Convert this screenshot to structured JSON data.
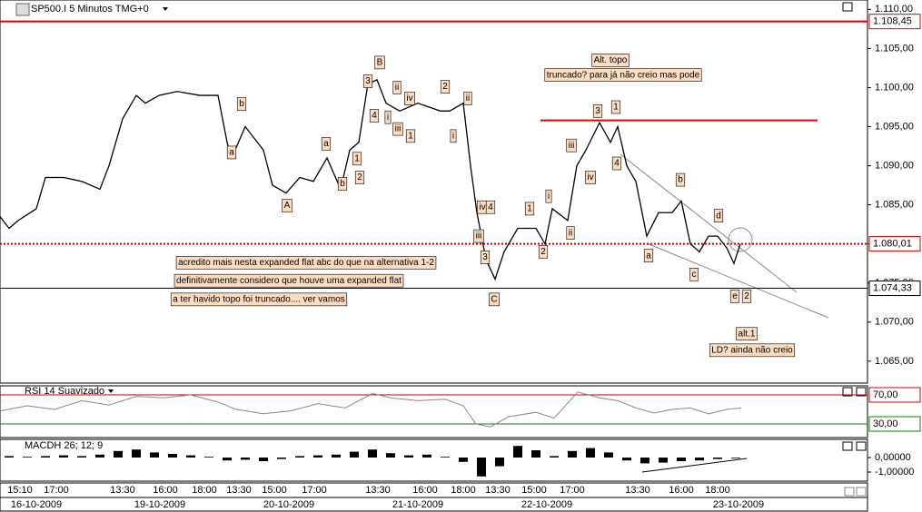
{
  "chart_data": [
    {
      "type": "line",
      "title": "SP500.I 5 Minutos TMG+0",
      "color": "#000000",
      "xlim": [
        0,
        477.5
      ],
      "ylim": [
        1062.2,
        1111.2
      ],
      "yticks": [
        {
          "value": 1065,
          "label": "1.065,00"
        },
        {
          "value": 1070,
          "label": "1.070,00"
        },
        {
          "value": 1075,
          "label": "1.075,00"
        },
        {
          "value": 1080,
          "label": "1.080,00"
        },
        {
          "value": 1085,
          "label": "1.085,00"
        },
        {
          "value": 1090,
          "label": "1.090,00"
        },
        {
          "value": 1095,
          "label": "1.095,00"
        },
        {
          "value": 1100,
          "label": "1.100,00"
        },
        {
          "value": 1105,
          "label": "1.105,00"
        },
        {
          "value": 1110,
          "label": "1.110,00"
        }
      ],
      "levels": [
        {
          "value": 1108.45,
          "label": "1.108,45",
          "color": "#dd0000",
          "style": "solid"
        },
        {
          "value": 1080.01,
          "label": "1.080,01",
          "color": "#cc0000",
          "style": "dotted"
        },
        {
          "value": 1074.33,
          "label": "1.074,33",
          "color": "#000000",
          "style": "solid"
        }
      ],
      "x": [
        0,
        5,
        10,
        20,
        25,
        35,
        45,
        55,
        60,
        67.5,
        75,
        80,
        87.5,
        97.5,
        110,
        120,
        125,
        127.5,
        135,
        145,
        150,
        157.5,
        165,
        172.5,
        180,
        187.5,
        192.5,
        197.5,
        202.5,
        207.5,
        212.5,
        220,
        230,
        242.5,
        247.5,
        255,
        259,
        262.5,
        267.5,
        272.5,
        277.5,
        285,
        295,
        300,
        304,
        312.5,
        317.5,
        322.5,
        330,
        336,
        340,
        345,
        350,
        356,
        362.5,
        370,
        375,
        380,
        385,
        390,
        395,
        400,
        404,
        407.5
      ],
      "values": [
        1083.5,
        1082,
        1083,
        1084.5,
        1088.5,
        1088.5,
        1088,
        1087,
        1090,
        1096,
        1099,
        1098,
        1099,
        1099.5,
        1099,
        1099,
        1093,
        1091,
        1095,
        1092,
        1087.5,
        1086.5,
        1088.5,
        1088,
        1091,
        1087,
        1092,
        1093,
        1100.5,
        1101,
        1098,
        1097,
        1098,
        1097,
        1097,
        1098,
        1090,
        1084,
        1078,
        1075.5,
        1079,
        1082,
        1082,
        1080,
        1084.5,
        1083,
        1090,
        1092,
        1095.5,
        1093,
        1095,
        1090,
        1088,
        1081,
        1084,
        1084,
        1085.5,
        1080,
        1079,
        1081,
        1081,
        1079.5,
        1077.5,
        1080
      ],
      "hline": {
        "value": 1095.8,
        "from": 297.5,
        "to": 450,
        "color": "#dd0000"
      },
      "annotations": [
        {
          "text": "B",
          "x": 209,
          "y": 1103.2
        },
        {
          "text": "3",
          "x": 202.5,
          "y": 1100.8
        },
        {
          "text": "ii",
          "x": 218.5,
          "y": 1100.0
        },
        {
          "text": "iv",
          "x": 225.5,
          "y": 1098.6
        },
        {
          "text": "4",
          "x": 206,
          "y": 1096.4
        },
        {
          "text": "i",
          "x": 213.5,
          "y": 1096.2
        },
        {
          "text": "iii",
          "x": 219,
          "y": 1094.7
        },
        {
          "text": "1",
          "x": 226,
          "y": 1093.8
        },
        {
          "text": "2",
          "x": 245,
          "y": 1100.1
        },
        {
          "text": "ii",
          "x": 257.5,
          "y": 1098.6
        },
        {
          "text": "i",
          "x": 249.5,
          "y": 1093.8
        },
        {
          "text": "b",
          "x": 133,
          "y": 1097.9
        },
        {
          "text": "a",
          "x": 179.5,
          "y": 1092.8
        },
        {
          "text": "a",
          "x": 127.5,
          "y": 1091.7
        },
        {
          "text": "1",
          "x": 196.5,
          "y": 1090.9
        },
        {
          "text": "2",
          "x": 198,
          "y": 1088.5
        },
        {
          "text": "b",
          "x": 188.5,
          "y": 1087.7
        },
        {
          "text": "A",
          "x": 158,
          "y": 1084.9
        },
        {
          "text": "iii",
          "x": 314.5,
          "y": 1092.6
        },
        {
          "text": "3",
          "x": 329,
          "y": 1097.0
        },
        {
          "text": "1",
          "x": 339,
          "y": 1097.5
        },
        {
          "text": "4",
          "x": 339.5,
          "y": 1090.3
        },
        {
          "text": "iv",
          "x": 325,
          "y": 1088.5
        },
        {
          "text": "i",
          "x": 302,
          "y": 1086.1
        },
        {
          "text": "1",
          "x": 291.5,
          "y": 1084.5
        },
        {
          "text": "iv",
          "x": 265.5,
          "y": 1084.7
        },
        {
          "text": "4",
          "x": 270,
          "y": 1084.7
        },
        {
          "text": "iii",
          "x": 263.5,
          "y": 1081.0
        },
        {
          "text": "ii",
          "x": 314,
          "y": 1081.4
        },
        {
          "text": "2",
          "x": 299,
          "y": 1079.0
        },
        {
          "text": "3",
          "x": 267,
          "y": 1078.3
        },
        {
          "text": "C",
          "x": 272,
          "y": 1072.9
        },
        {
          "text": "b",
          "x": 374.5,
          "y": 1088.2
        },
        {
          "text": "d",
          "x": 395.5,
          "y": 1083.6
        },
        {
          "text": "a",
          "x": 357,
          "y": 1078.5
        },
        {
          "text": "c",
          "x": 382,
          "y": 1076.1
        },
        {
          "text": "e",
          "x": 404.5,
          "y": 1073.3
        },
        {
          "text": "2",
          "x": 411,
          "y": 1073.3
        },
        {
          "text": "Alt. topo",
          "x": 336,
          "y": 1103.5
        },
        {
          "text": "truncado? para já não creio mas pode",
          "x": 343,
          "y": 1101.6
        },
        {
          "text": "alt.1",
          "x": 411,
          "y": 1068.5
        },
        {
          "text": "LD? ainda não creio",
          "x": 414,
          "y": 1066.4
        },
        {
          "text": "acredito mais nesta expanded flat abc do que na alternativa 1-2",
          "x": 168.5,
          "y": 1077.6
        },
        {
          "text": "definitivamente considero que houve uma expanded flat",
          "x": 159,
          "y": 1075.3
        },
        {
          "text": "a ter havido topo foi truncado.... ver vamos",
          "x": 142.5,
          "y": 1072.9
        }
      ]
    },
    {
      "type": "line",
      "title": "RSI 14 Suavizado",
      "color": "#888888",
      "xlim": [
        0,
        477.5
      ],
      "ylim": [
        11.25,
        82.5
      ],
      "levels": [
        {
          "value": 70,
          "label": "70,00",
          "color": "#cc0000",
          "style": "solid"
        },
        {
          "value": 30,
          "label": "30,00",
          "color": "#008800",
          "style": "solid"
        }
      ],
      "x": [
        0,
        15,
        30,
        45,
        60,
        75,
        90,
        105,
        120,
        130,
        145,
        160,
        175,
        190,
        205,
        215,
        230,
        245,
        255,
        262,
        270,
        280,
        295,
        305,
        318,
        330,
        340,
        350,
        360,
        370,
        380,
        390,
        400,
        408
      ],
      "values": [
        48,
        55,
        50,
        62,
        56,
        68,
        66,
        70,
        60,
        50,
        44,
        48,
        58,
        52,
        72,
        66,
        62,
        64,
        55,
        30,
        26,
        40,
        46,
        38,
        74,
        66,
        62,
        52,
        45,
        50,
        52,
        44,
        50,
        52
      ]
    },
    {
      "type": "bar",
      "title": "MACDH 26; 12; 9",
      "color": "#000000",
      "xlim": [
        0,
        477.5
      ],
      "ylim": [
        -1.625,
        1.25
      ],
      "yticks": [
        {
          "value": 0,
          "label": "0,00000"
        },
        {
          "value": -1,
          "label": "-1,00000"
        }
      ],
      "x": [
        5,
        15,
        25,
        35,
        45,
        55,
        65,
        75,
        85,
        95,
        105,
        115,
        125,
        135,
        145,
        155,
        165,
        175,
        185,
        195,
        205,
        215,
        225,
        235,
        245,
        255,
        265,
        275,
        285,
        295,
        305,
        315,
        325,
        335,
        345,
        355,
        365,
        375,
        385,
        395,
        405
      ],
      "values": [
        0.1,
        0.05,
        0.1,
        0.15,
        0.1,
        0.2,
        0.45,
        0.55,
        0.35,
        0.25,
        0.15,
        0.05,
        -0.2,
        -0.15,
        -0.25,
        -0.1,
        0.1,
        0.15,
        0.2,
        0.4,
        0.55,
        0.3,
        0.15,
        0.2,
        0.05,
        -0.3,
        -1.3,
        -0.6,
        0.8,
        0.5,
        0.1,
        0.45,
        0.65,
        0.35,
        -0.2,
        -0.4,
        -0.35,
        -0.25,
        -0.2,
        -0.1,
        -0.05
      ],
      "xticks": [
        {
          "value": 11,
          "label": "15:10"
        },
        {
          "value": 31,
          "label": "17:00"
        },
        {
          "value": 67.5,
          "label": "13:30"
        },
        {
          "value": 91,
          "label": "16:00"
        },
        {
          "value": 112.5,
          "label": "18:00"
        },
        {
          "value": 131.5,
          "label": "13:30"
        },
        {
          "value": 151,
          "label": "15:00"
        },
        {
          "value": 173,
          "label": "17:00"
        },
        {
          "value": 208,
          "label": "13:30"
        },
        {
          "value": 234,
          "label": "16:00"
        },
        {
          "value": 255,
          "label": "18:00"
        },
        {
          "value": 274,
          "label": "13:30"
        },
        {
          "value": 294,
          "label": "15:00"
        },
        {
          "value": 315,
          "label": "17:00"
        },
        {
          "value": 351,
          "label": "13:30"
        },
        {
          "value": 375,
          "label": "16:00"
        },
        {
          "value": 395,
          "label": "18:00"
        }
      ],
      "date_ticks": [
        {
          "value": 20,
          "label": "16-10-2009"
        },
        {
          "value": 88,
          "label": "19-10-2009"
        },
        {
          "value": 159,
          "label": "20-10-2009"
        },
        {
          "value": 230,
          "label": "21-10-2009"
        },
        {
          "value": 301,
          "label": "22-10-2009"
        },
        {
          "value": 406.5,
          "label": "23-10-2009"
        }
      ]
    }
  ]
}
